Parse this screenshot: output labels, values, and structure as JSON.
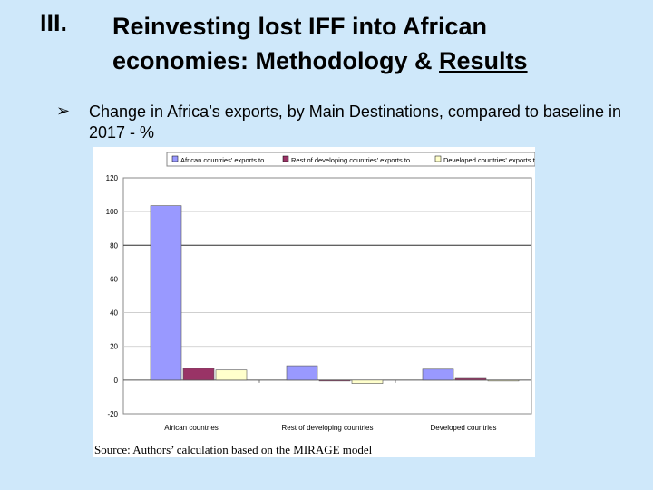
{
  "slide": {
    "number": "III.",
    "title_part1": "Reinvesting lost IFF into African economies: Methodology & ",
    "title_part2": "Results",
    "bullet_text": "Change in Africa’s exports, by Main Destinations, compared to baseline in 2017 - %",
    "source": "Source: Authors’ calculation based on the MIRAGE model"
  },
  "chart_data": {
    "type": "bar",
    "title": "",
    "xlabel": "",
    "ylabel": "",
    "categories": [
      "African countries",
      "Rest of developing countries",
      "Developed countries"
    ],
    "series": [
      {
        "name": "African countries' exports to",
        "values": [
          103.5,
          8.5,
          6.5
        ],
        "color": "#9999ff"
      },
      {
        "name": "Rest of developing countries' exports to",
        "values": [
          7.0,
          -0.5,
          1.0
        ],
        "color": "#993366"
      },
      {
        "name": "Developed countries' exports to",
        "values": [
          6.0,
          -2.0,
          -0.5
        ],
        "color": "#ffffcc"
      }
    ],
    "ylim": [
      -20,
      120
    ],
    "yticks": [
      -20,
      0,
      20,
      40,
      60,
      80,
      100,
      120
    ],
    "grid": true,
    "legend_position": "top"
  }
}
